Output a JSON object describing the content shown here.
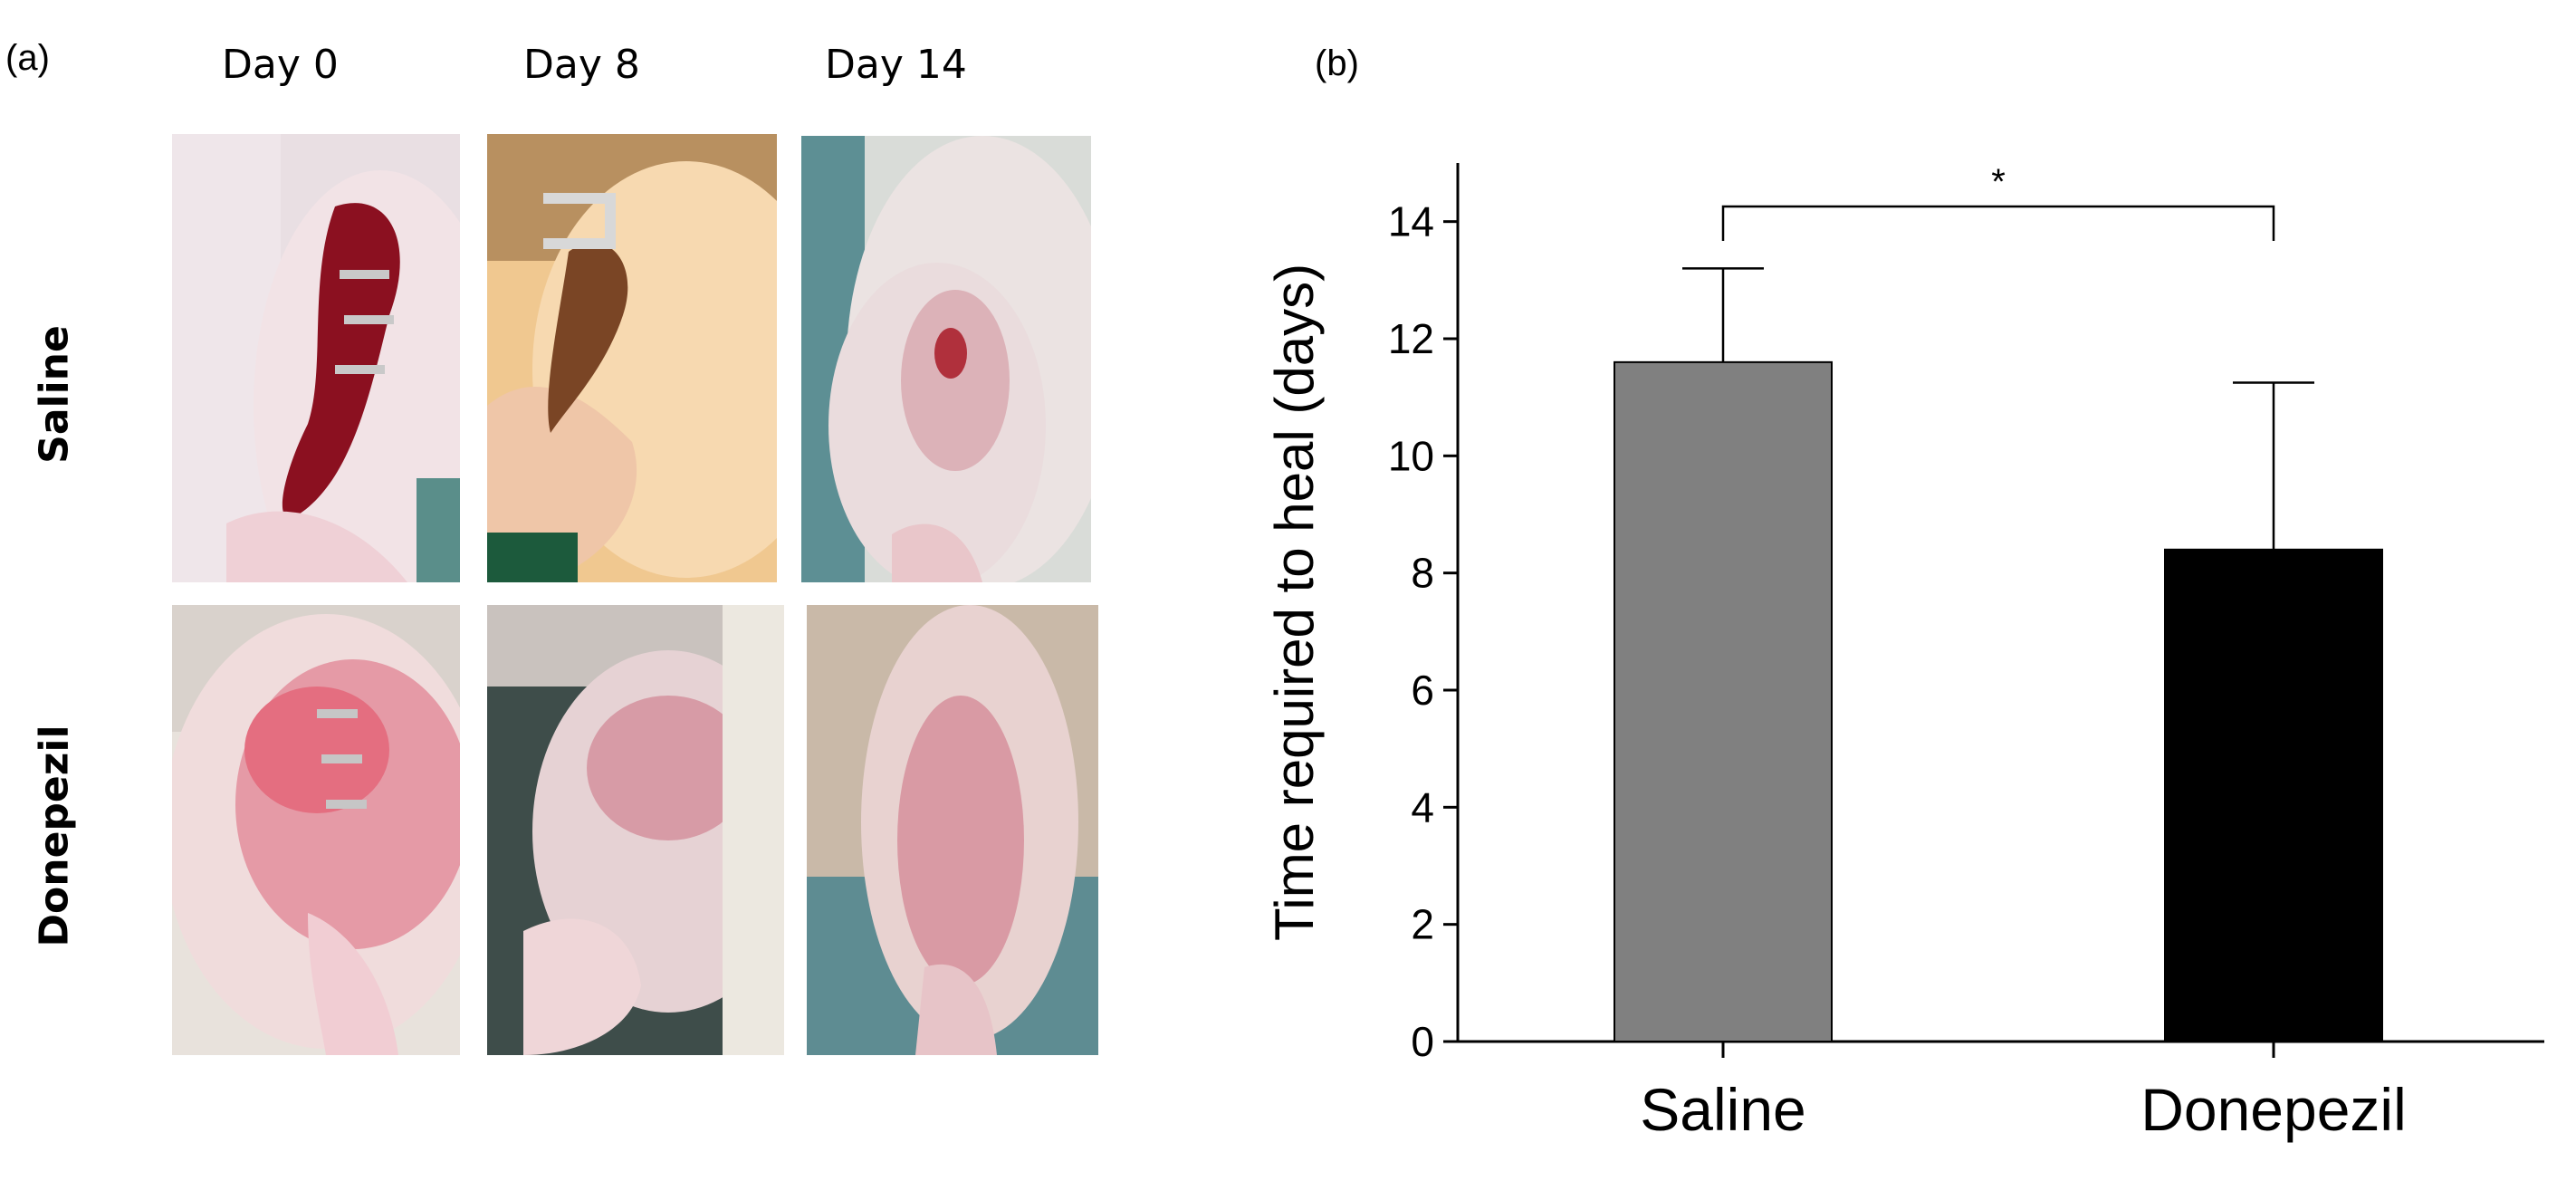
{
  "panel_a": {
    "label": "(a)",
    "columns": [
      "Day 0",
      "Day 8",
      "Day 14"
    ],
    "rows": [
      "Saline",
      "Donepezil"
    ]
  },
  "panel_b": {
    "label": "(b)"
  },
  "chart_data": {
    "type": "bar",
    "categories": [
      "Saline",
      "Donepezil"
    ],
    "values": [
      11.6,
      8.4
    ],
    "errors": [
      1.6,
      2.85
    ],
    "colors": [
      "#808080",
      "#000000"
    ],
    "ylabel": "Time required to heal (days)",
    "xlabel": "",
    "ylim": [
      0,
      15
    ],
    "yticks": [
      "0",
      "2",
      "4",
      "6",
      "8",
      "10",
      "12",
      "14"
    ],
    "significance": "*",
    "grid": false
  }
}
